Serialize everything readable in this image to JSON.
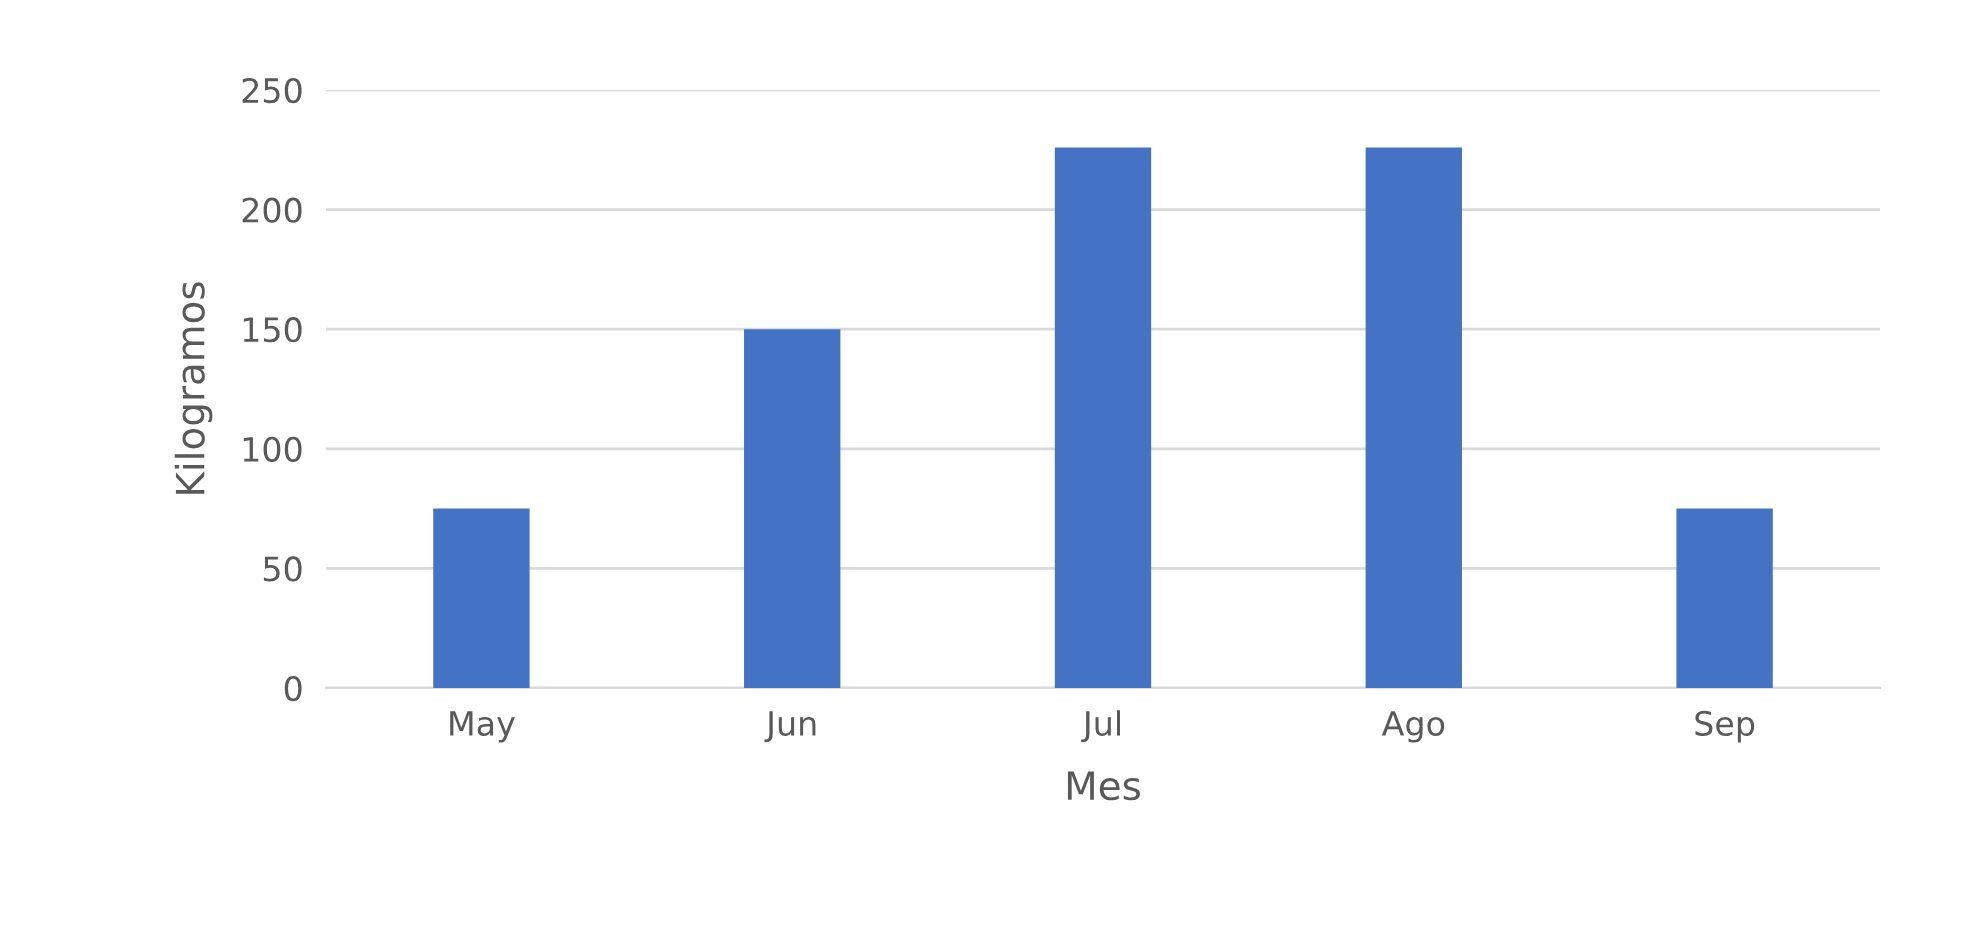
{
  "chart_data": {
    "type": "bar",
    "xlabel": "Mes",
    "ylabel": "Kilogramos",
    "categories": [
      "May",
      "Jun",
      "Jul",
      "Ago",
      "Sep"
    ],
    "values": [
      75,
      150,
      226,
      226,
      75
    ],
    "color": "#4472c4",
    "ylim": [
      0,
      250
    ],
    "yticks": [
      0,
      50,
      100,
      150,
      200,
      250
    ],
    "grid": "y",
    "legend": false
  }
}
